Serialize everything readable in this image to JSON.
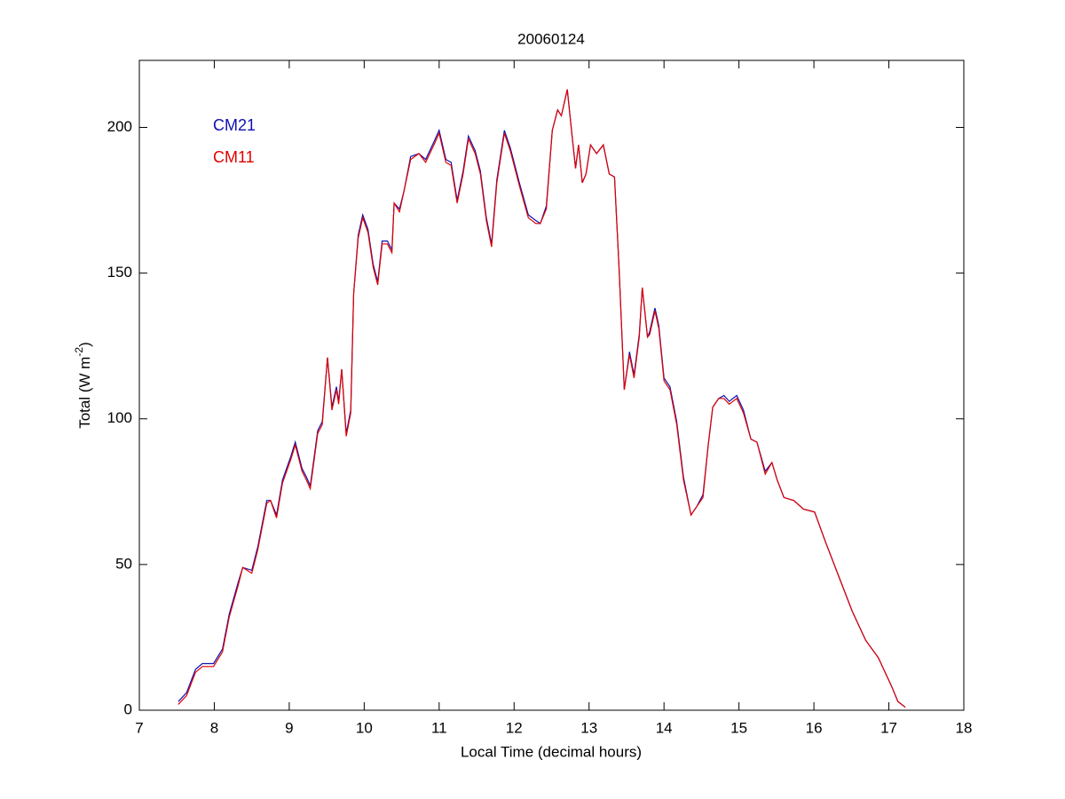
{
  "chart_data": {
    "type": "line",
    "title": "20060124",
    "xlabel": "Local Time (decimal hours)",
    "ylabel": [
      "Total (W m",
      "-2",
      ")"
    ],
    "x": [
      7.52,
      7.63,
      7.75,
      7.84,
      7.99,
      8.11,
      8.2,
      8.32,
      8.38,
      8.5,
      8.58,
      8.7,
      8.75,
      8.83,
      8.91,
      9.02,
      9.08,
      9.17,
      9.23,
      9.28,
      9.38,
      9.44,
      9.51,
      9.57,
      9.63,
      9.66,
      9.7,
      9.76,
      9.82,
      9.86,
      9.92,
      9.98,
      10.05,
      10.12,
      10.18,
      10.24,
      10.31,
      10.37,
      10.4,
      10.47,
      10.53,
      10.62,
      10.73,
      10.82,
      10.93,
      11.0,
      11.09,
      11.16,
      11.24,
      11.32,
      11.39,
      11.48,
      11.55,
      11.63,
      11.7,
      11.77,
      11.87,
      11.95,
      12.07,
      12.19,
      12.29,
      12.35,
      12.43,
      12.51,
      12.58,
      12.63,
      12.71,
      12.77,
      12.82,
      12.86,
      12.91,
      12.96,
      13.02,
      13.1,
      13.19,
      13.27,
      13.34,
      13.4,
      13.47,
      13.54,
      13.6,
      13.67,
      13.71,
      13.78,
      13.81,
      13.88,
      13.93,
      14.0,
      14.08,
      14.17,
      14.26,
      14.36,
      14.44,
      14.52,
      14.59,
      14.65,
      14.73,
      14.8,
      14.87,
      14.97,
      15.06,
      15.16,
      15.24,
      15.35,
      15.44,
      15.51,
      15.6,
      15.73,
      15.86,
      16.01,
      16.15,
      16.33,
      16.51,
      16.69,
      16.86,
      17.04,
      17.12,
      17.22
    ],
    "series": [
      {
        "name": "CM21",
        "color": "#1010b0",
        "values": [
          3,
          6,
          14,
          16,
          16,
          21,
          33,
          44,
          49,
          48,
          56,
          72,
          72,
          67,
          79,
          87,
          92,
          83,
          80,
          77,
          96,
          99,
          121,
          104,
          111,
          106,
          117,
          95,
          103,
          143,
          163,
          170,
          165,
          153,
          147,
          161,
          161,
          158,
          174,
          172,
          178,
          190,
          191,
          189,
          195,
          199,
          189,
          188,
          175,
          185,
          197,
          192,
          185,
          169,
          160,
          182,
          199,
          193,
          181,
          170,
          168,
          167,
          173,
          199,
          206,
          204,
          213,
          198,
          186,
          194,
          181,
          184,
          194,
          191,
          194,
          184,
          183,
          152,
          110,
          123,
          115,
          129,
          145,
          128,
          130,
          138,
          132,
          114,
          111,
          99,
          80,
          67,
          70,
          74,
          91,
          104,
          107,
          108,
          106,
          108,
          103,
          93,
          92,
          82,
          85,
          79,
          73,
          72,
          69,
          68,
          58,
          46,
          34,
          24,
          18,
          8,
          3,
          1
        ]
      },
      {
        "name": "CM11",
        "color": "#e00000",
        "values": [
          2,
          5,
          13,
          15,
          15,
          20,
          32,
          43,
          49,
          47,
          55,
          71,
          72,
          66,
          78,
          86,
          91,
          82,
          79,
          76,
          95,
          98,
          121,
          103,
          110,
          105,
          117,
          94,
          102,
          143,
          162,
          169,
          164,
          152,
          146,
          160,
          160,
          157,
          174,
          171,
          178,
          189,
          191,
          188,
          194,
          198,
          188,
          187,
          174,
          184,
          196,
          191,
          184,
          168,
          159,
          181,
          198,
          192,
          180,
          169,
          167,
          167,
          172,
          199,
          206,
          204,
          213,
          198,
          186,
          194,
          181,
          184,
          194,
          191,
          194,
          184,
          183,
          152,
          110,
          122,
          114,
          128,
          145,
          128,
          129,
          137,
          131,
          113,
          110,
          98,
          79,
          67,
          70,
          73,
          91,
          104,
          107,
          107,
          105,
          107,
          102,
          93,
          92,
          81,
          85,
          79,
          73,
          72,
          69,
          68,
          58,
          46,
          34,
          24,
          18,
          8,
          3,
          1
        ]
      }
    ],
    "xlim": [
      7,
      18
    ],
    "xticks": [
      7,
      8,
      9,
      10,
      11,
      12,
      13,
      14,
      15,
      16,
      17,
      18
    ],
    "ylim": [
      0,
      223
    ],
    "yticks": [
      0,
      50,
      100,
      150,
      200
    ],
    "legend": "upper left",
    "grid": false
  }
}
